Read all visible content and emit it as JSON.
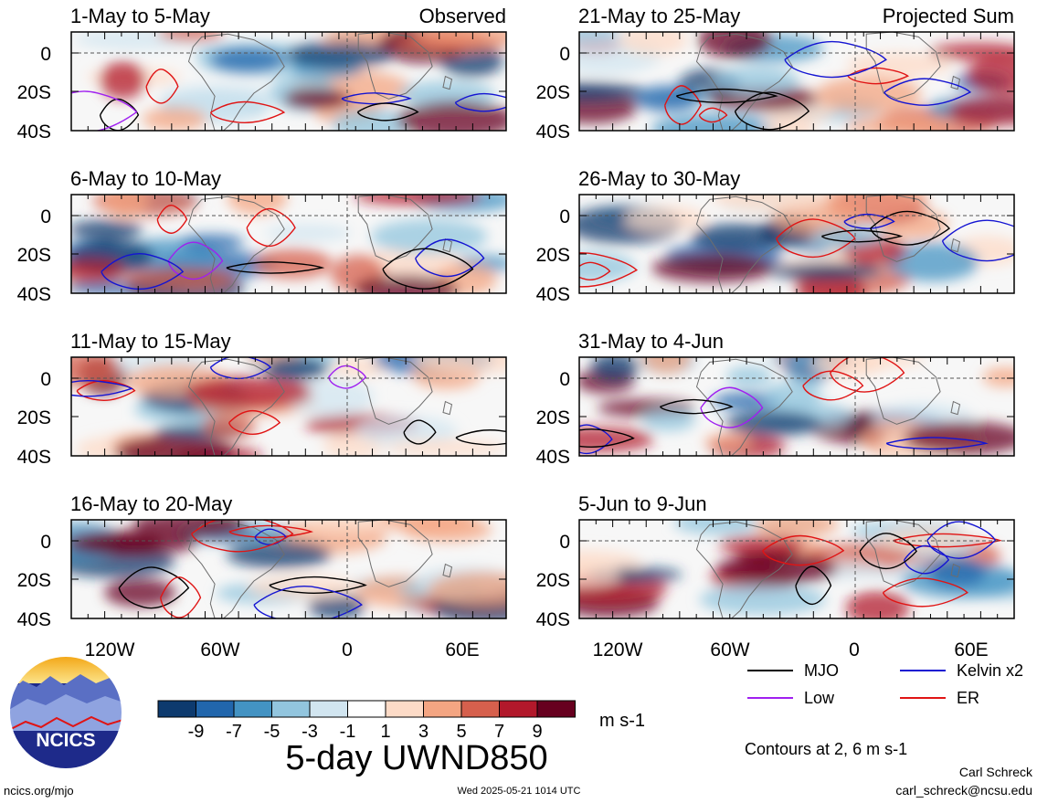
{
  "panels": [
    {
      "title": "1-May to 5-May",
      "tag": "Observed"
    },
    {
      "title": "21-May to 25-May",
      "tag": "Projected Sum"
    },
    {
      "title": "6-May to 10-May",
      "tag": ""
    },
    {
      "title": "26-May to 30-May",
      "tag": ""
    },
    {
      "title": "11-May to 15-May",
      "tag": ""
    },
    {
      "title": "31-May to 4-Jun",
      "tag": ""
    },
    {
      "title": "16-May to 20-May",
      "tag": ""
    },
    {
      "title": "5-Jun to 9-Jun",
      "tag": ""
    }
  ],
  "axis": {
    "lat_labels": [
      "0",
      "20S",
      "40S"
    ],
    "lon_labels": [
      "120W",
      "60W",
      "0",
      "60E"
    ]
  },
  "legend": [
    {
      "label": "MJO",
      "color": "#000000"
    },
    {
      "label": "Kelvin x2",
      "color": "#1414d2"
    },
    {
      "label": "Low",
      "color": "#a020f0"
    },
    {
      "label": "ER",
      "color": "#e01414"
    }
  ],
  "colorbar": {
    "labels": [
      "-9",
      "-7",
      "-5",
      "-3",
      "-1",
      "1",
      "3",
      "5",
      "7",
      "9"
    ],
    "colors": [
      "#0d3a6e",
      "#2166ac",
      "#4393c3",
      "#92c5de",
      "#d1e5f0",
      "#ffffff",
      "#fddbc7",
      "#f4a582",
      "#d6604d",
      "#b2182b",
      "#67001f"
    ],
    "unit": "m s-1"
  },
  "main_title": "5-day UWND850",
  "contour_note": "Contours at 2, 6 m s-1",
  "logo_text": "NCICS",
  "footer": {
    "left": "ncics.org/mjo",
    "center": "Wed 2025-05-21 1014 UTC",
    "author": "Carl Schreck",
    "email": "carl_schreck@ncsu.edu"
  }
}
